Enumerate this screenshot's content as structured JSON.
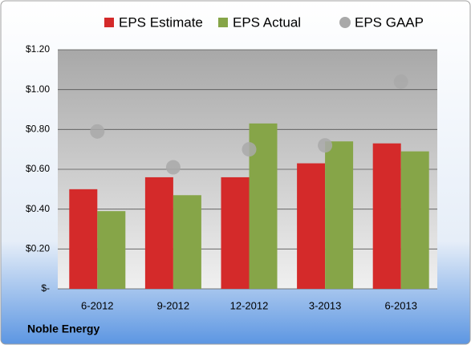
{
  "chart_data": {
    "type": "bar",
    "categories": [
      "6-2012",
      "9-2012",
      "12-2012",
      "3-2013",
      "6-2013"
    ],
    "series": [
      {
        "name": "EPS Estimate",
        "color": "#d42a2a",
        "values": [
          0.5,
          0.56,
          0.56,
          0.63,
          0.73
        ]
      },
      {
        "name": "EPS Actual",
        "color": "#86a548",
        "values": [
          0.39,
          0.47,
          0.83,
          0.74,
          0.69
        ]
      },
      {
        "name": "EPS GAAP",
        "color": "#a9a9a9",
        "style": "point",
        "values": [
          0.79,
          0.61,
          0.7,
          0.72,
          1.04
        ]
      }
    ],
    "ylim": [
      0,
      1.2
    ],
    "yticks": [
      {
        "value": 0,
        "label": "$-"
      },
      {
        "value": 0.2,
        "label": "$0.20"
      },
      {
        "value": 0.4,
        "label": "$0.40"
      },
      {
        "value": 0.6,
        "label": "$0.60"
      },
      {
        "value": 0.8,
        "label": "$0.80"
      },
      {
        "value": 1.0,
        "label": "$1.00"
      },
      {
        "value": 1.2,
        "label": "$1.20"
      }
    ],
    "grid": true,
    "legend": "top",
    "footer": "Noble Energy"
  }
}
